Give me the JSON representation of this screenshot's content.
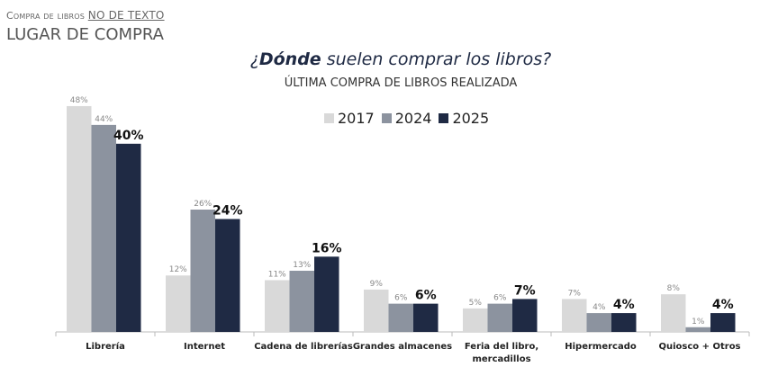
{
  "header": {
    "supertitle": "Compra de libros",
    "supertitle_link": "NO DE TEXTO",
    "title": "LUGAR DE COMPRA"
  },
  "chart_data": {
    "type": "bar",
    "title_bold": "Dónde",
    "title_pre": "¿",
    "title_rest": " suelen comprar los libros?",
    "subtitle": "ÚLTIMA COMPRA DE LIBROS REALIZADA",
    "legend_position": "top",
    "categories": [
      "Librería",
      "Internet",
      "Cadena de librerías",
      "Grandes almacenes",
      "Feria del libro, mercadillos",
      "Hipermercado",
      "Quiosco + Otros"
    ],
    "series": [
      {
        "name": "2017",
        "color": "#d9d9d9",
        "values": [
          48,
          12,
          11,
          9,
          5,
          7,
          8
        ]
      },
      {
        "name": "2024",
        "color": "#8c939f",
        "values": [
          44,
          26,
          13,
          6,
          6,
          4,
          1
        ]
      },
      {
        "name": "2025",
        "color": "#1f2a44",
        "values": [
          40,
          24,
          16,
          6,
          7,
          4,
          4
        ]
      }
    ],
    "unit": "%",
    "grid": false
  }
}
